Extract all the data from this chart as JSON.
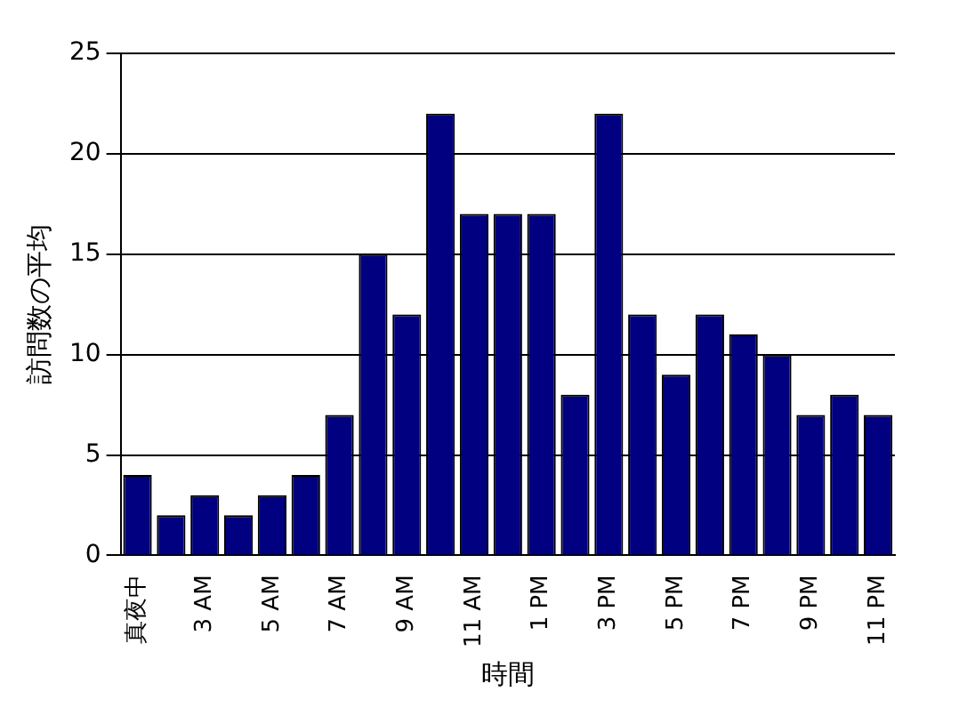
{
  "chart_data": {
    "type": "bar",
    "xlabel": "時間",
    "ylabel": "訪問数の平均",
    "categories": [
      "真夜中",
      null,
      "3 AM",
      null,
      "5 AM",
      null,
      "7 AM",
      null,
      "9 AM",
      null,
      "11 AM",
      null,
      "1 PM",
      null,
      "3 PM",
      null,
      "5 PM",
      null,
      "7 PM",
      null,
      "9 PM",
      null,
      "11 PM"
    ],
    "values": [
      4,
      2,
      3,
      2,
      3,
      4,
      7,
      15,
      12,
      22,
      17,
      17,
      17,
      8,
      22,
      12,
      9,
      12,
      11,
      10,
      7,
      8,
      7
    ],
    "color": "#000080",
    "ylim": [
      0,
      25
    ],
    "yticks": [
      0,
      5,
      10,
      15,
      20,
      25
    ],
    "grid": "y",
    "legend": false
  }
}
